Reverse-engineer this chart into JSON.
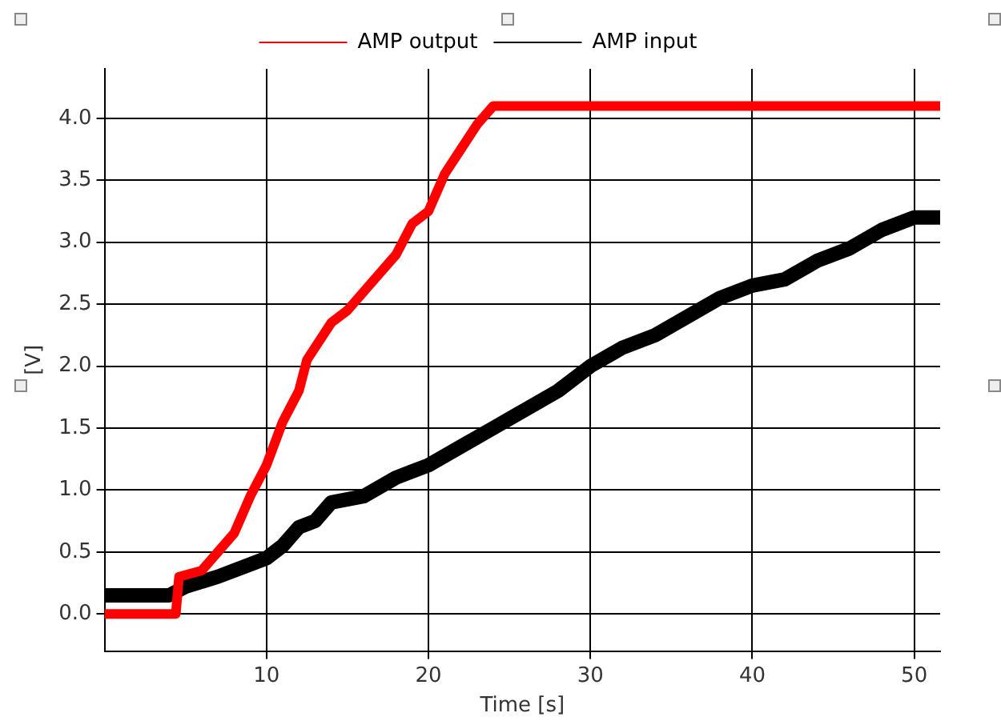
{
  "chart_data": {
    "type": "line",
    "xlabel": "Time [s]",
    "ylabel": "[V]",
    "xlim": [
      0,
      51.6
    ],
    "xticks": [
      10,
      20,
      30,
      40,
      50
    ],
    "ylim": [
      -0.3,
      4.4
    ],
    "yticks": [
      {
        "value": 0,
        "label": "0.0"
      },
      {
        "value": 0.5,
        "label": "0.5"
      },
      {
        "value": 1,
        "label": "1.0"
      },
      {
        "value": 1.5,
        "label": "1.5"
      },
      {
        "value": 2,
        "label": "2.0"
      },
      {
        "value": 2.5,
        "label": "2.5"
      },
      {
        "value": 3,
        "label": "3.0"
      },
      {
        "value": 3.5,
        "label": "3.5"
      },
      {
        "value": 4,
        "label": "4.0"
      }
    ],
    "grid": true,
    "legend": "top",
    "marker": "none",
    "line_style": "solid",
    "series": [
      {
        "name": "AMP output",
        "color": "#ff0000",
        "x": [
          0,
          2,
          4.4,
          4.6,
          6,
          7,
          8,
          9,
          10,
          11,
          12,
          12.5,
          13,
          14,
          15,
          16,
          17,
          18,
          19,
          20,
          21,
          22,
          23,
          24,
          30,
          40,
          51.6
        ],
        "values": [
          0,
          0,
          0,
          0.3,
          0.35,
          0.5,
          0.65,
          0.95,
          1.2,
          1.55,
          1.8,
          2.05,
          2.15,
          2.35,
          2.45,
          2.6,
          2.75,
          2.9,
          3.15,
          3.25,
          3.55,
          3.75,
          3.95,
          4.1,
          4.1,
          4.1,
          4.1
        ]
      },
      {
        "name": "AMP input",
        "color": "#000000",
        "x": [
          0,
          2,
          4,
          5,
          7,
          9,
          10,
          11,
          12,
          13,
          14,
          16,
          18,
          20,
          22,
          24,
          26,
          28,
          30,
          32,
          34,
          36,
          38,
          40,
          42,
          44,
          46,
          48,
          50,
          51.6
        ],
        "values": [
          0.15,
          0.15,
          0.15,
          0.22,
          0.3,
          0.4,
          0.45,
          0.55,
          0.7,
          0.75,
          0.9,
          0.95,
          1.1,
          1.2,
          1.35,
          1.5,
          1.65,
          1.8,
          2.0,
          2.15,
          2.25,
          2.4,
          2.55,
          2.65,
          2.7,
          2.85,
          2.95,
          3.1,
          3.2,
          3.2
        ]
      }
    ]
  }
}
